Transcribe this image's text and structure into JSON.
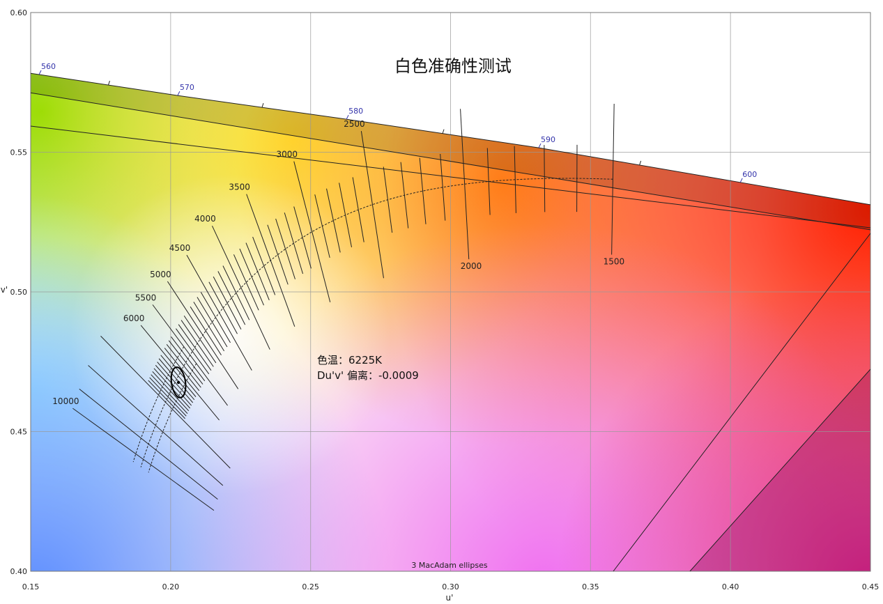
{
  "chart_data": {
    "type": "scatter",
    "title": "白色准确性测试",
    "xlabel": "u'",
    "ylabel": "v'",
    "xlim": [
      0.15,
      0.45
    ],
    "ylim": [
      0.4,
      0.6
    ],
    "x_ticks": [
      "0.15",
      "0.20",
      "0.25",
      "0.30",
      "0.35",
      "0.40",
      "0.45"
    ],
    "y_ticks": [
      "0.40",
      "0.45",
      "0.50",
      "0.55",
      "0.60"
    ],
    "grid": true,
    "spectrum_locus": [
      {
        "nm": "560",
        "u": 0.153,
        "v": 0.5778
      },
      {
        "nm": "570",
        "u": 0.2025,
        "v": 0.5703
      },
      {
        "nm": "580",
        "u": 0.2628,
        "v": 0.5618
      },
      {
        "nm": "590",
        "u": 0.3315,
        "v": 0.5516
      },
      {
        "nm": "600",
        "u": 0.4035,
        "v": 0.5392
      }
    ],
    "spectrum_color": "#3333aa",
    "cct_labels": [
      "1500",
      "2000",
      "2500",
      "3000",
      "3500",
      "4000",
      "4500",
      "5000",
      "5500",
      "6000",
      "10000"
    ],
    "measured_point": {
      "u": 0.2028,
      "v": 0.4676
    },
    "annotation": {
      "cct": "色温：6225K",
      "duv": "Du'v' 偏离：-0.0009"
    },
    "footer": "3  MacAdam ellipses"
  }
}
